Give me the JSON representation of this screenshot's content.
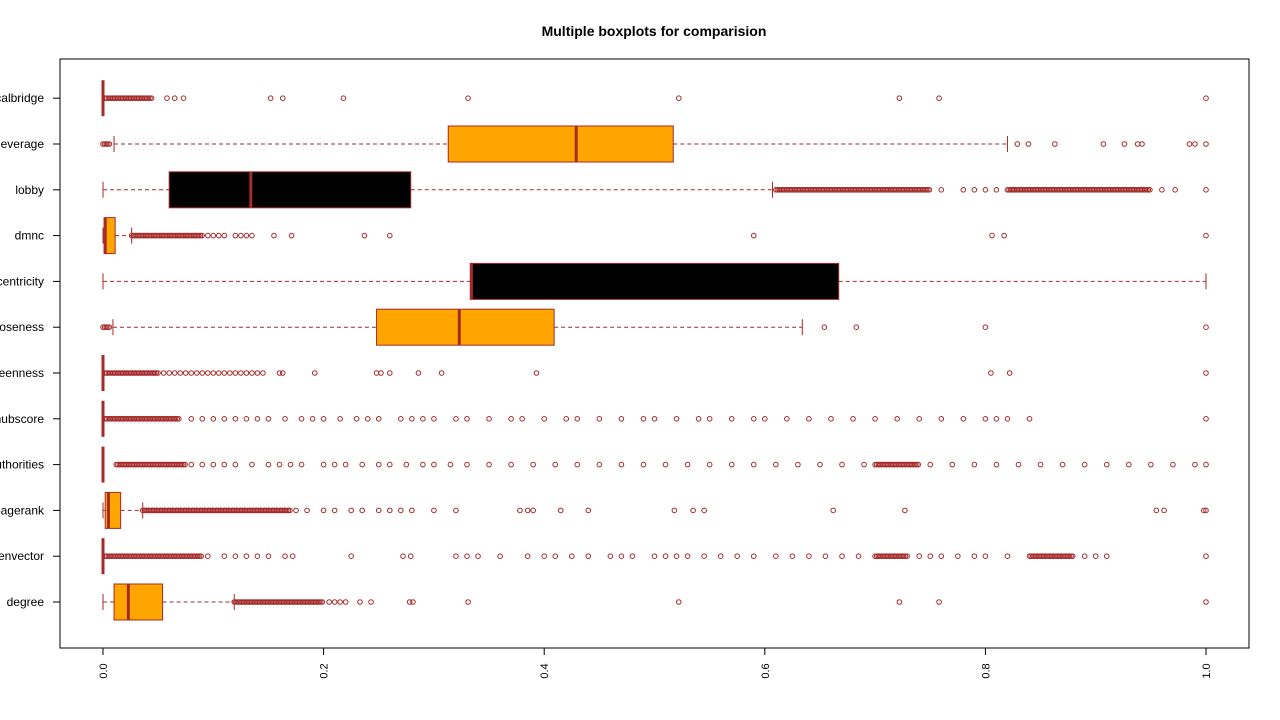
{
  "chart_data": {
    "type": "boxplot",
    "orientation": "horizontal",
    "title": "Multiple boxplots for comparision",
    "xlim": [
      0,
      1
    ],
    "xticks": [
      "0.0",
      "0.2",
      "0.4",
      "0.6",
      "0.8",
      "1.0"
    ],
    "xtick_values": [
      0,
      0.2,
      0.4,
      0.6,
      0.8,
      1.0
    ],
    "colors": {
      "orange": "#FFA500",
      "black": "#000000",
      "line": "#A52A2A",
      "outlier": "#A52A2A"
    },
    "series": [
      {
        "name": "degree",
        "fill": "orange",
        "whisker_low": 0.0,
        "q1": 0.01,
        "median": 0.023,
        "q3": 0.054,
        "whisker_high": 0.119,
        "outliers_dense": [
          [
            0.119,
            0.2
          ]
        ],
        "outliers": [
          0.205,
          0.21,
          0.215,
          0.22,
          0.233,
          0.243,
          0.278,
          0.281,
          0.331,
          0.522,
          0.722,
          0.758,
          1.0
        ]
      },
      {
        "name": "eigenvector",
        "fill": "orange",
        "whisker_low": 0.0,
        "q1": 0.0,
        "median": 0.0,
        "q3": 0.0,
        "whisker_high": 0.0,
        "outliers_dense": [
          [
            0.002,
            0.09
          ],
          [
            0.7,
            0.73
          ],
          [
            0.84,
            0.88
          ]
        ],
        "outliers": [
          0.095,
          0.11,
          0.12,
          0.13,
          0.14,
          0.15,
          0.165,
          0.172,
          0.225,
          0.272,
          0.279,
          0.32,
          0.33,
          0.34,
          0.36,
          0.385,
          0.4,
          0.41,
          0.425,
          0.44,
          0.46,
          0.47,
          0.48,
          0.5,
          0.51,
          0.52,
          0.53,
          0.545,
          0.56,
          0.575,
          0.59,
          0.61,
          0.625,
          0.64,
          0.655,
          0.67,
          0.685,
          0.74,
          0.75,
          0.76,
          0.775,
          0.79,
          0.8,
          0.82,
          0.89,
          0.9,
          0.91,
          1.0
        ]
      },
      {
        "name": "pagerank",
        "fill": "orange",
        "whisker_low": 0.0,
        "q1": 0.002,
        "median": 0.005,
        "q3": 0.016,
        "whisker_high": 0.036,
        "outliers_dense": [
          [
            0.036,
            0.17
          ]
        ],
        "outliers": [
          0.175,
          0.185,
          0.2,
          0.21,
          0.225,
          0.235,
          0.25,
          0.26,
          0.27,
          0.28,
          0.3,
          0.32,
          0.378,
          0.385,
          0.39,
          0.415,
          0.44,
          0.518,
          0.535,
          0.545,
          0.662,
          0.727,
          0.955,
          0.962,
          0.998,
          1.0
        ]
      },
      {
        "name": "authorities",
        "fill": "orange",
        "whisker_low": 0.0,
        "q1": 0.0,
        "median": 0.0,
        "q3": 0.0,
        "whisker_high": 0.0,
        "outliers_dense": [
          [
            0.012,
            0.075
          ],
          [
            0.7,
            0.74
          ]
        ],
        "outliers": [
          0.08,
          0.09,
          0.1,
          0.11,
          0.12,
          0.135,
          0.15,
          0.16,
          0.17,
          0.18,
          0.2,
          0.21,
          0.22,
          0.235,
          0.25,
          0.26,
          0.275,
          0.29,
          0.3,
          0.315,
          0.33,
          0.35,
          0.37,
          0.39,
          0.41,
          0.43,
          0.45,
          0.47,
          0.49,
          0.51,
          0.53,
          0.55,
          0.57,
          0.59,
          0.61,
          0.63,
          0.65,
          0.67,
          0.69,
          0.75,
          0.77,
          0.79,
          0.81,
          0.83,
          0.85,
          0.87,
          0.89,
          0.91,
          0.93,
          0.95,
          0.97,
          0.99,
          1.0
        ]
      },
      {
        "name": "hubscore",
        "fill": "orange",
        "whisker_low": 0.0,
        "q1": 0.0,
        "median": 0.0,
        "q3": 0.0,
        "whisker_high": 0.0,
        "outliers_dense": [
          [
            0.002,
            0.07
          ]
        ],
        "outliers": [
          0.08,
          0.09,
          0.1,
          0.11,
          0.12,
          0.13,
          0.14,
          0.15,
          0.165,
          0.18,
          0.19,
          0.2,
          0.215,
          0.23,
          0.24,
          0.25,
          0.27,
          0.28,
          0.29,
          0.3,
          0.32,
          0.33,
          0.35,
          0.37,
          0.38,
          0.4,
          0.42,
          0.43,
          0.45,
          0.47,
          0.49,
          0.5,
          0.52,
          0.54,
          0.55,
          0.57,
          0.59,
          0.6,
          0.62,
          0.64,
          0.66,
          0.68,
          0.7,
          0.72,
          0.74,
          0.76,
          0.78,
          0.8,
          0.81,
          0.82,
          0.84,
          1.0
        ]
      },
      {
        "name": "betweenness",
        "fill": "orange",
        "whisker_low": 0.0,
        "q1": 0.0,
        "median": 0.0,
        "q3": 0.0,
        "whisker_high": 0.0,
        "outliers_dense": [
          [
            0.002,
            0.05
          ]
        ],
        "outliers": [
          0.055,
          0.06,
          0.065,
          0.07,
          0.075,
          0.08,
          0.085,
          0.09,
          0.095,
          0.1,
          0.105,
          0.11,
          0.115,
          0.12,
          0.125,
          0.13,
          0.135,
          0.14,
          0.145,
          0.16,
          0.163,
          0.192,
          0.248,
          0.252,
          0.26,
          0.286,
          0.307,
          0.393,
          0.805,
          0.822,
          1.0
        ]
      },
      {
        "name": "closeness",
        "fill": "orange",
        "whisker_low": 0.009,
        "q1": 0.248,
        "median": 0.323,
        "q3": 0.409,
        "whisker_high": 0.634,
        "outliers_dense": [
          [
            0.0,
            0.007
          ]
        ],
        "outliers": [
          0.654,
          0.683,
          0.8,
          1.0
        ]
      },
      {
        "name": "eigencentricity",
        "fill": "black",
        "whisker_low": 0.0,
        "q1": 0.333,
        "median": 0.334,
        "q3": 0.667,
        "whisker_high": 1.0,
        "outliers_dense": [],
        "outliers": []
      },
      {
        "name": "dmnc",
        "fill": "orange",
        "whisker_low": 0.0,
        "q1": 0.001,
        "median": 0.002,
        "q3": 0.011,
        "whisker_high": 0.026,
        "outliers_dense": [
          [
            0.026,
            0.09
          ]
        ],
        "outliers": [
          0.095,
          0.1,
          0.105,
          0.11,
          0.12,
          0.125,
          0.13,
          0.135,
          0.155,
          0.171,
          0.237,
          0.26,
          0.59,
          0.806,
          0.817,
          1.0
        ]
      },
      {
        "name": "lobby",
        "fill": "black",
        "whisker_low": 0.0,
        "q1": 0.06,
        "median": 0.134,
        "q3": 0.279,
        "whisker_high": 0.607,
        "outliers_dense": [
          [
            0.61,
            0.75
          ],
          [
            0.82,
            0.95
          ]
        ],
        "outliers": [
          0.76,
          0.78,
          0.79,
          0.8,
          0.81,
          0.96,
          0.972,
          1.0
        ]
      },
      {
        "name": "leverage",
        "fill": "orange",
        "whisker_low": 0.01,
        "q1": 0.313,
        "median": 0.429,
        "q3": 0.517,
        "whisker_high": 0.82,
        "outliers_dense": [
          [
            0.0,
            0.007
          ]
        ],
        "outliers": [
          0.829,
          0.839,
          0.863,
          0.907,
          0.926,
          0.938,
          0.942,
          0.985,
          0.99,
          1.0
        ]
      },
      {
        "name": "localbridge",
        "fill": "orange",
        "whisker_low": 0.0,
        "q1": 0.0,
        "median": 0.0,
        "q3": 0.0,
        "whisker_high": 0.0,
        "outliers_dense": [
          [
            0.002,
            0.045
          ]
        ],
        "outliers": [
          0.058,
          0.065,
          0.073,
          0.152,
          0.163,
          0.218,
          0.331,
          0.522,
          0.722,
          0.758,
          1.0
        ]
      }
    ]
  }
}
